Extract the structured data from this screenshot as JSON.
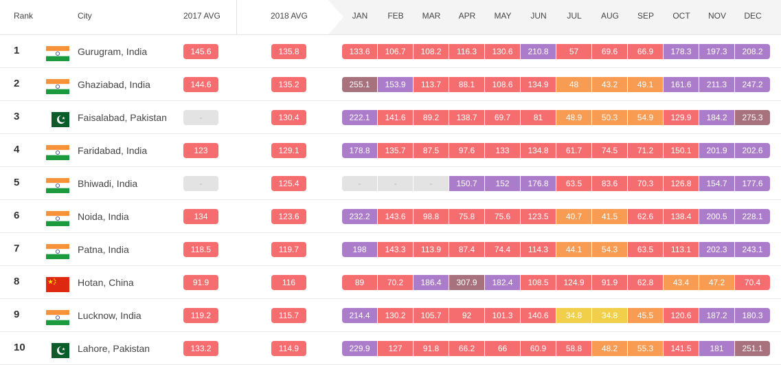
{
  "headers": {
    "rank": "Rank",
    "city": "City",
    "avg2017": "2017 AVG",
    "avg2018": "2018 AVG",
    "months": [
      "JAN",
      "FEB",
      "MAR",
      "APR",
      "MAY",
      "JUN",
      "JUL",
      "AUG",
      "SEP",
      "OCT",
      "NOV",
      "DEC"
    ]
  },
  "colors": {
    "na": "#e3e3e3",
    "red": "#f66d6f",
    "purple": "#ab7cc9",
    "maroon": "#a7727c",
    "orange": "#f89b53",
    "yellow": "#f2cf4b"
  },
  "rows": [
    {
      "rank": "1",
      "city": "Gurugram, India",
      "flag": "india-flag-icon",
      "avg2017": {
        "v": "145.6",
        "c": "red"
      },
      "avg2018": {
        "v": "135.8",
        "c": "red"
      },
      "months": [
        {
          "v": "133.6",
          "c": "red"
        },
        {
          "v": "106.7",
          "c": "red"
        },
        {
          "v": "108.2",
          "c": "red"
        },
        {
          "v": "116.3",
          "c": "red"
        },
        {
          "v": "130.6",
          "c": "red"
        },
        {
          "v": "210.8",
          "c": "purple"
        },
        {
          "v": "57",
          "c": "red"
        },
        {
          "v": "69.6",
          "c": "red"
        },
        {
          "v": "66.9",
          "c": "red"
        },
        {
          "v": "178.3",
          "c": "purple"
        },
        {
          "v": "197.3",
          "c": "purple"
        },
        {
          "v": "208.2",
          "c": "purple"
        }
      ]
    },
    {
      "rank": "2",
      "city": "Ghaziabad, India",
      "flag": "india-flag-icon",
      "avg2017": {
        "v": "144.6",
        "c": "red"
      },
      "avg2018": {
        "v": "135.2",
        "c": "red"
      },
      "months": [
        {
          "v": "255.1",
          "c": "maroon"
        },
        {
          "v": "153.9",
          "c": "purple"
        },
        {
          "v": "113.7",
          "c": "red"
        },
        {
          "v": "88.1",
          "c": "red"
        },
        {
          "v": "108.6",
          "c": "red"
        },
        {
          "v": "134.9",
          "c": "red"
        },
        {
          "v": "48",
          "c": "orange"
        },
        {
          "v": "43.2",
          "c": "orange"
        },
        {
          "v": "49.1",
          "c": "orange"
        },
        {
          "v": "161.6",
          "c": "purple"
        },
        {
          "v": "211.3",
          "c": "purple"
        },
        {
          "v": "247.2",
          "c": "purple"
        }
      ]
    },
    {
      "rank": "3",
      "city": "Faisalabad, Pakistan",
      "flag": "pakistan-flag-icon",
      "avg2017": {
        "v": "-",
        "c": "na"
      },
      "avg2018": {
        "v": "130.4",
        "c": "red"
      },
      "months": [
        {
          "v": "222.1",
          "c": "purple"
        },
        {
          "v": "141.6",
          "c": "red"
        },
        {
          "v": "89.2",
          "c": "red"
        },
        {
          "v": "138.7",
          "c": "red"
        },
        {
          "v": "69.7",
          "c": "red"
        },
        {
          "v": "81",
          "c": "red"
        },
        {
          "v": "48.9",
          "c": "orange"
        },
        {
          "v": "50.3",
          "c": "orange"
        },
        {
          "v": "54.9",
          "c": "orange"
        },
        {
          "v": "129.9",
          "c": "red"
        },
        {
          "v": "184.2",
          "c": "purple"
        },
        {
          "v": "275.3",
          "c": "maroon"
        }
      ]
    },
    {
      "rank": "4",
      "city": "Faridabad, India",
      "flag": "india-flag-icon",
      "avg2017": {
        "v": "123",
        "c": "red"
      },
      "avg2018": {
        "v": "129.1",
        "c": "red"
      },
      "months": [
        {
          "v": "178.8",
          "c": "purple"
        },
        {
          "v": "135.7",
          "c": "red"
        },
        {
          "v": "87.5",
          "c": "red"
        },
        {
          "v": "97.6",
          "c": "red"
        },
        {
          "v": "133",
          "c": "red"
        },
        {
          "v": "134.8",
          "c": "red"
        },
        {
          "v": "61.7",
          "c": "red"
        },
        {
          "v": "74.5",
          "c": "red"
        },
        {
          "v": "71.2",
          "c": "red"
        },
        {
          "v": "150.1",
          "c": "red"
        },
        {
          "v": "201.9",
          "c": "purple"
        },
        {
          "v": "202.6",
          "c": "purple"
        }
      ]
    },
    {
      "rank": "5",
      "city": "Bhiwadi, India",
      "flag": "india-flag-icon",
      "avg2017": {
        "v": "-",
        "c": "na"
      },
      "avg2018": {
        "v": "125.4",
        "c": "red"
      },
      "months": [
        {
          "v": "-",
          "c": "na"
        },
        {
          "v": "-",
          "c": "na"
        },
        {
          "v": "-",
          "c": "na"
        },
        {
          "v": "150.7",
          "c": "purple"
        },
        {
          "v": "152",
          "c": "purple"
        },
        {
          "v": "176.8",
          "c": "purple"
        },
        {
          "v": "63.5",
          "c": "red"
        },
        {
          "v": "83.6",
          "c": "red"
        },
        {
          "v": "70.3",
          "c": "red"
        },
        {
          "v": "126.8",
          "c": "red"
        },
        {
          "v": "154.7",
          "c": "purple"
        },
        {
          "v": "177.6",
          "c": "purple"
        }
      ]
    },
    {
      "rank": "6",
      "city": "Noida, India",
      "flag": "india-flag-icon",
      "avg2017": {
        "v": "134",
        "c": "red"
      },
      "avg2018": {
        "v": "123.6",
        "c": "red"
      },
      "months": [
        {
          "v": "232.2",
          "c": "purple"
        },
        {
          "v": "143.6",
          "c": "red"
        },
        {
          "v": "98.8",
          "c": "red"
        },
        {
          "v": "75.8",
          "c": "red"
        },
        {
          "v": "75.6",
          "c": "red"
        },
        {
          "v": "123.5",
          "c": "red"
        },
        {
          "v": "40.7",
          "c": "orange"
        },
        {
          "v": "41.5",
          "c": "orange"
        },
        {
          "v": "62.6",
          "c": "red"
        },
        {
          "v": "138.4",
          "c": "red"
        },
        {
          "v": "200.5",
          "c": "purple"
        },
        {
          "v": "228.1",
          "c": "purple"
        }
      ]
    },
    {
      "rank": "7",
      "city": "Patna, India",
      "flag": "india-flag-icon",
      "avg2017": {
        "v": "118.5",
        "c": "red"
      },
      "avg2018": {
        "v": "119.7",
        "c": "red"
      },
      "months": [
        {
          "v": "198",
          "c": "purple"
        },
        {
          "v": "143.3",
          "c": "red"
        },
        {
          "v": "113.9",
          "c": "red"
        },
        {
          "v": "87.4",
          "c": "red"
        },
        {
          "v": "74.4",
          "c": "red"
        },
        {
          "v": "114.3",
          "c": "red"
        },
        {
          "v": "44.1",
          "c": "orange"
        },
        {
          "v": "54.3",
          "c": "orange"
        },
        {
          "v": "63.5",
          "c": "red"
        },
        {
          "v": "113.1",
          "c": "red"
        },
        {
          "v": "202.3",
          "c": "purple"
        },
        {
          "v": "243.1",
          "c": "purple"
        }
      ]
    },
    {
      "rank": "8",
      "city": "Hotan, China",
      "flag": "china-flag-icon",
      "avg2017": {
        "v": "91.9",
        "c": "red"
      },
      "avg2018": {
        "v": "116",
        "c": "red"
      },
      "months": [
        {
          "v": "89",
          "c": "red"
        },
        {
          "v": "70.2",
          "c": "red"
        },
        {
          "v": "186.4",
          "c": "purple"
        },
        {
          "v": "307.9",
          "c": "maroon"
        },
        {
          "v": "182.4",
          "c": "purple"
        },
        {
          "v": "108.5",
          "c": "red"
        },
        {
          "v": "124.9",
          "c": "red"
        },
        {
          "v": "91.9",
          "c": "red"
        },
        {
          "v": "62.8",
          "c": "red"
        },
        {
          "v": "43.4",
          "c": "orange"
        },
        {
          "v": "47.2",
          "c": "orange"
        },
        {
          "v": "70.4",
          "c": "red"
        }
      ]
    },
    {
      "rank": "9",
      "city": "Lucknow, India",
      "flag": "india-flag-icon",
      "avg2017": {
        "v": "119.2",
        "c": "red"
      },
      "avg2018": {
        "v": "115.7",
        "c": "red"
      },
      "months": [
        {
          "v": "214.4",
          "c": "purple"
        },
        {
          "v": "130.2",
          "c": "red"
        },
        {
          "v": "105.7",
          "c": "red"
        },
        {
          "v": "92",
          "c": "red"
        },
        {
          "v": "101.3",
          "c": "red"
        },
        {
          "v": "140.6",
          "c": "red"
        },
        {
          "v": "34.8",
          "c": "yellow"
        },
        {
          "v": "34.8",
          "c": "yellow"
        },
        {
          "v": "45.5",
          "c": "orange"
        },
        {
          "v": "120.6",
          "c": "red"
        },
        {
          "v": "187.2",
          "c": "purple"
        },
        {
          "v": "180.3",
          "c": "purple"
        }
      ]
    },
    {
      "rank": "10",
      "city": "Lahore, Pakistan",
      "flag": "pakistan-flag-icon",
      "avg2017": {
        "v": "133.2",
        "c": "red"
      },
      "avg2018": {
        "v": "114.9",
        "c": "red"
      },
      "months": [
        {
          "v": "229.9",
          "c": "purple"
        },
        {
          "v": "127",
          "c": "red"
        },
        {
          "v": "91.8",
          "c": "red"
        },
        {
          "v": "66.2",
          "c": "red"
        },
        {
          "v": "66",
          "c": "red"
        },
        {
          "v": "60.9",
          "c": "red"
        },
        {
          "v": "58.8",
          "c": "red"
        },
        {
          "v": "48.2",
          "c": "orange"
        },
        {
          "v": "55.3",
          "c": "orange"
        },
        {
          "v": "141.5",
          "c": "red"
        },
        {
          "v": "181",
          "c": "purple"
        },
        {
          "v": "251.1",
          "c": "maroon"
        }
      ]
    }
  ]
}
